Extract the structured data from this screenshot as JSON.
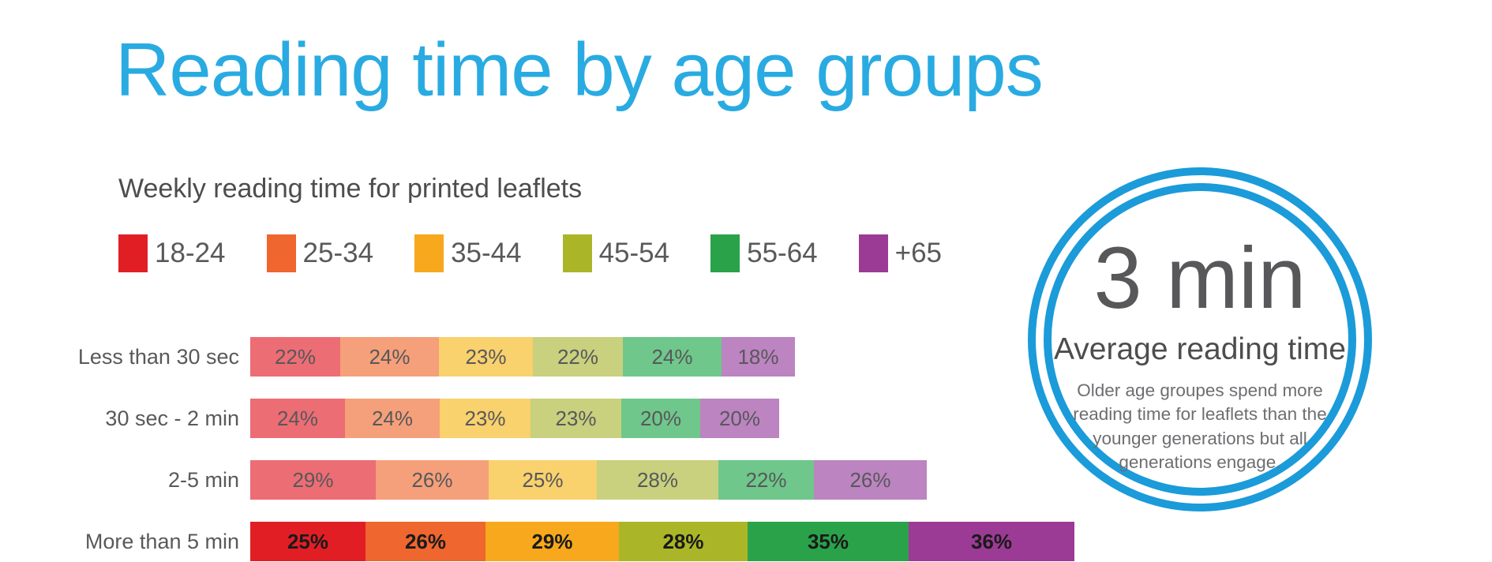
{
  "title": "Reading time by age groups",
  "colors": {
    "title_blue": "#29ABE2",
    "ring_blue": "#1B9BD9",
    "subtitle_gray": "#4D4D4F",
    "label_gray": "#58595B"
  },
  "chart_data": {
    "type": "bar",
    "variant": "horizontal-stacked",
    "title": "Reading time by age groups",
    "subtitle": "Weekly reading time for printed leaflets",
    "unit": "%",
    "legend_position": "top",
    "value_labels": "inside",
    "grid": false,
    "categories": [
      "Less than 30 sec",
      "30 sec - 2 min",
      "2-5 min",
      "More than 5 min"
    ],
    "highlighted_category": "More than 5 min",
    "series": [
      {
        "name": "18-24",
        "color": "#E21E25",
        "muted_color": "#ED6D74",
        "values": [
          22,
          24,
          29,
          25
        ]
      },
      {
        "name": "25-34",
        "color": "#EF662F",
        "muted_color": "#F5A07A",
        "values": [
          24,
          24,
          26,
          26
        ]
      },
      {
        "name": "35-44",
        "color": "#F7A81C",
        "muted_color": "#F9D16D",
        "values": [
          23,
          23,
          25,
          29
        ]
      },
      {
        "name": "45-54",
        "color": "#AAB627",
        "muted_color": "#C9D07E",
        "values": [
          22,
          23,
          28,
          28
        ]
      },
      {
        "name": "55-64",
        "color": "#2AA24A",
        "muted_color": "#6FC78B",
        "values": [
          24,
          20,
          22,
          35
        ]
      },
      {
        "name": "+65",
        "color": "#9C3B96",
        "muted_color": "#BC84C0",
        "values": [
          18,
          20,
          26,
          36
        ]
      }
    ]
  },
  "badge": {
    "value": "3 min",
    "label": "Average reading time",
    "description": "Older age groupes spend more reading time for leaflets than the younger generations but all generations engage."
  }
}
